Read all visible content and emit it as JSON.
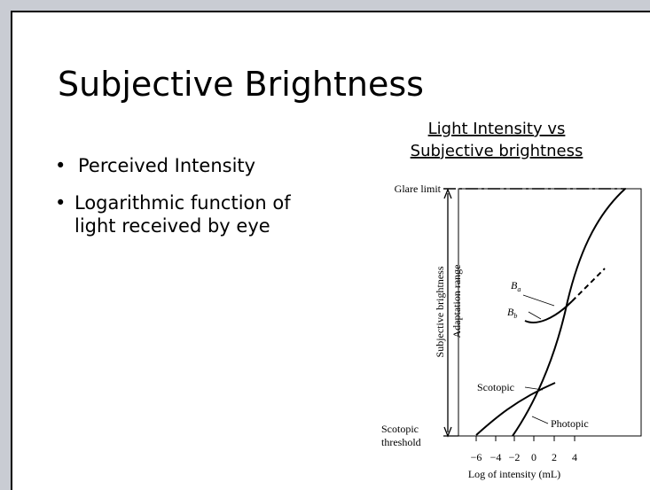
{
  "slide": {
    "title": "Subjective Brightness",
    "bullets": [
      "Perceived Intensity",
      "Logarithmic function of light received by eye"
    ],
    "figure": {
      "caption": [
        "Light Intensity vs",
        "Subjective brightness"
      ],
      "glare_limit": "Glare limit",
      "scotopic_threshold": [
        "Scotopic",
        "threshold"
      ],
      "y_label": "Subjective brightness",
      "range_label": "Adaptation range",
      "x_label": "Log of intensity (mL)",
      "xticks": [
        "−6",
        "−4",
        "−2",
        "0",
        "2",
        "4"
      ],
      "ba": "B",
      "ba_sub": "a",
      "bb": "B",
      "bb_sub": "b",
      "scotopic": "Scotopic",
      "photopic": "Photopic"
    }
  }
}
